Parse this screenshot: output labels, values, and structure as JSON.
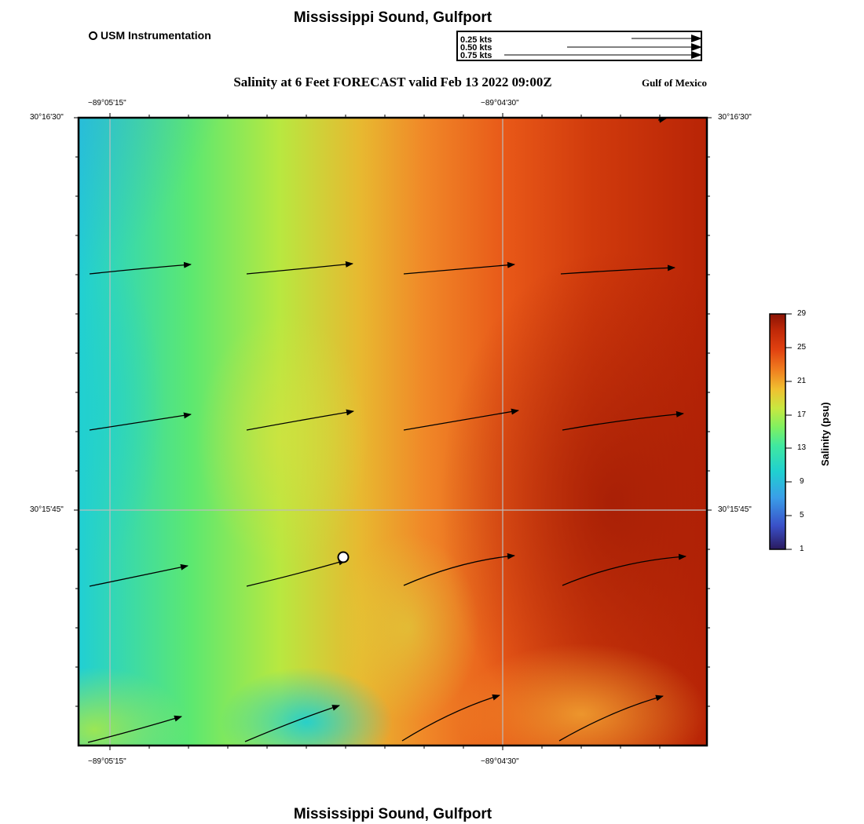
{
  "title": "Mississippi Sound, Gulfport",
  "subtitle": "Salinity at 6 Feet FORECAST valid Feb 13 2022 09:00Z",
  "region_label": "Gulf of Mexico",
  "station_legend": "USM Instrumentation",
  "vector_key": [
    {
      "label": "0.25 kts",
      "speed": 0.25
    },
    {
      "label": "0.50 kts",
      "speed": 0.5
    },
    {
      "label": "0.75 kts",
      "speed": 0.75
    }
  ],
  "axes": {
    "x_ticks": [
      "−89°05'15\"",
      "−89°04'30\""
    ],
    "y_ticks": [
      "30°16'30\"",
      "30°15'45\""
    ]
  },
  "colorbar": {
    "title": "Salinity (psu)",
    "ticks": [
      "29",
      "25",
      "21",
      "17",
      "13",
      "9",
      "5",
      "1"
    ],
    "min": 1,
    "max": 29,
    "colors": [
      "#2a1a5e",
      "#3a6fd8",
      "#3a9ee8",
      "#20d0d0",
      "#40e8a0",
      "#80f060",
      "#c8e840",
      "#f0c030",
      "#f08020",
      "#e04010",
      "#c02808",
      "#8a1405"
    ]
  }
}
